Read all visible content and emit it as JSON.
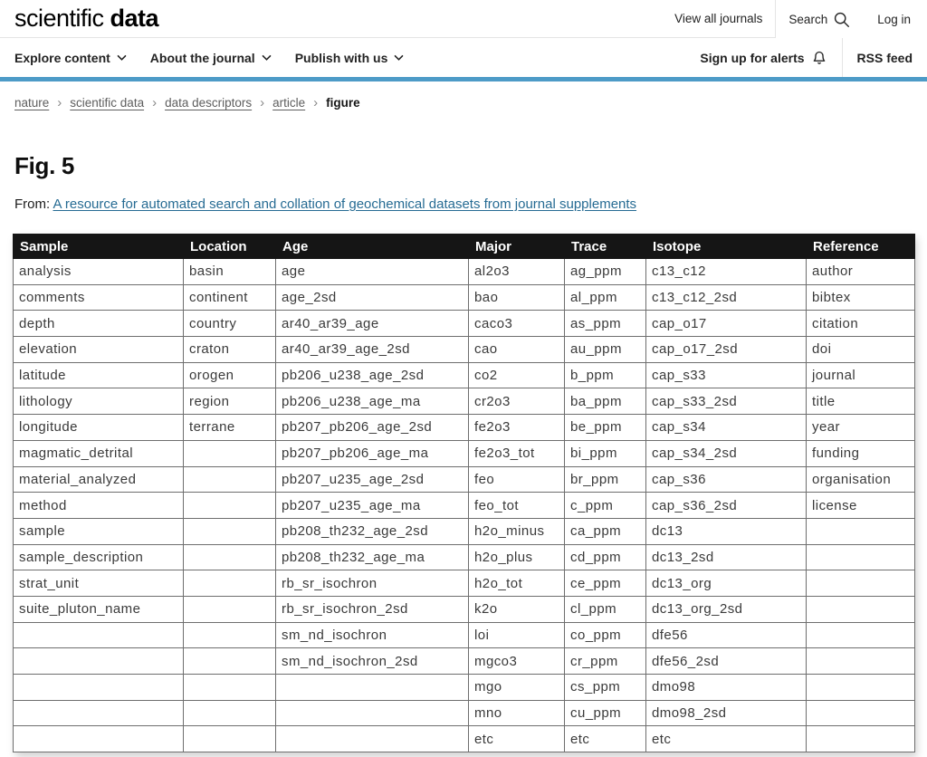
{
  "header": {
    "logo_light": "scientific",
    "logo_bold": "data",
    "view_all_journals": "View all journals",
    "search_label": "Search",
    "login_label": "Log in"
  },
  "nav": {
    "items": [
      "Explore content",
      "About the journal",
      "Publish with us"
    ],
    "alerts_label": "Sign up for alerts",
    "rss_label": "RSS feed"
  },
  "breadcrumb": {
    "links": [
      "nature",
      "scientific data",
      "data descriptors",
      "article"
    ],
    "separator": "›",
    "current": "figure"
  },
  "figure": {
    "title": "Fig. 5",
    "from_label": "From:",
    "source_link": "A resource for automated search and collation of geochemical datasets from journal supplements"
  },
  "colors": {
    "accent_bar": "#4d9bc7",
    "link_blue": "#266b93",
    "table_header_bg": "#151515"
  },
  "icons": {
    "search": "search-icon (magnifier)",
    "bell": "bell-icon",
    "chevron": "chevron-down-icon"
  },
  "table": {
    "headers": [
      "Sample",
      "Location",
      "Age",
      "Major",
      "Trace",
      "Isotope",
      "Reference"
    ],
    "rows": [
      [
        "analysis",
        "basin",
        "age",
        "al2o3",
        "ag_ppm",
        "c13_c12",
        "author"
      ],
      [
        "comments",
        "continent",
        "age_2sd",
        "bao",
        "al_ppm",
        "c13_c12_2sd",
        "bibtex"
      ],
      [
        "depth",
        "country",
        "ar40_ar39_age",
        "caco3",
        "as_ppm",
        "cap_o17",
        "citation"
      ],
      [
        "elevation",
        "craton",
        "ar40_ar39_age_2sd",
        "cao",
        "au_ppm",
        "cap_o17_2sd",
        "doi"
      ],
      [
        "latitude",
        "orogen",
        "pb206_u238_age_2sd",
        "co2",
        "b_ppm",
        "cap_s33",
        "journal"
      ],
      [
        "lithology",
        "region",
        "pb206_u238_age_ma",
        "cr2o3",
        "ba_ppm",
        "cap_s33_2sd",
        "title"
      ],
      [
        "longitude",
        "terrane",
        "pb207_pb206_age_2sd",
        "fe2o3",
        "be_ppm",
        "cap_s34",
        "year"
      ],
      [
        "magmatic_detrital",
        "",
        "pb207_pb206_age_ma",
        "fe2o3_tot",
        "bi_ppm",
        "cap_s34_2sd",
        "funding"
      ],
      [
        "material_analyzed",
        "",
        "pb207_u235_age_2sd",
        "feo",
        "br_ppm",
        "cap_s36",
        "organisation"
      ],
      [
        "method",
        "",
        "pb207_u235_age_ma",
        "feo_tot",
        "c_ppm",
        "cap_s36_2sd",
        "license"
      ],
      [
        "sample",
        "",
        "pb208_th232_age_2sd",
        "h2o_minus",
        "ca_ppm",
        "dc13",
        ""
      ],
      [
        "sample_description",
        "",
        "pb208_th232_age_ma",
        "h2o_plus",
        "cd_ppm",
        "dc13_2sd",
        ""
      ],
      [
        "strat_unit",
        "",
        "rb_sr_isochron",
        "h2o_tot",
        "ce_ppm",
        "dc13_org",
        ""
      ],
      [
        "suite_pluton_name",
        "",
        "rb_sr_isochron_2sd",
        "k2o",
        "cl_ppm",
        "dc13_org_2sd",
        ""
      ],
      [
        "",
        "",
        "sm_nd_isochron",
        "loi",
        "co_ppm",
        "dfe56",
        ""
      ],
      [
        "",
        "",
        "sm_nd_isochron_2sd",
        "mgco3",
        "cr_ppm",
        "dfe56_2sd",
        ""
      ],
      [
        "",
        "",
        "",
        "mgo",
        "cs_ppm",
        "dmo98",
        ""
      ],
      [
        "",
        "",
        "",
        "mno",
        "cu_ppm",
        "dmo98_2sd",
        ""
      ],
      [
        "",
        "",
        "",
        "etc",
        "etc",
        "etc",
        ""
      ]
    ]
  }
}
